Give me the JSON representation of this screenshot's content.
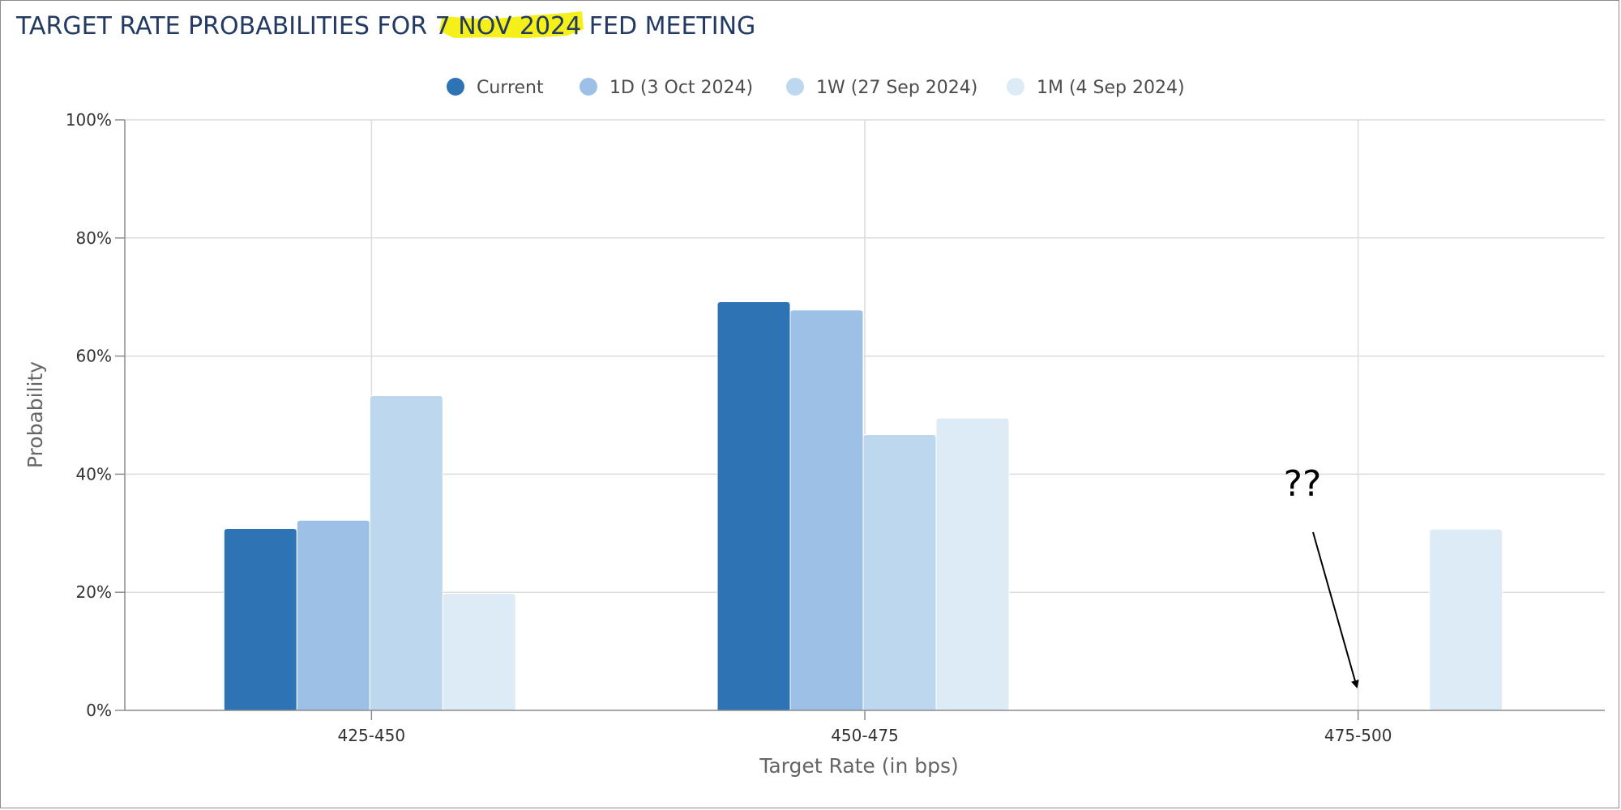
{
  "chart_data": {
    "type": "bar",
    "title_parts": [
      "TARGET RATE PROBABILITIES FOR ",
      "7 NOV 2024",
      " FED MEETING"
    ],
    "highlight_color": "#f5ef1a",
    "xlabel": "Target Rate (in bps)",
    "ylabel": "Probability",
    "ylim": [
      0,
      100
    ],
    "y_ticks": [
      "0%",
      "20%",
      "40%",
      "60%",
      "80%",
      "100%"
    ],
    "categories": [
      "425-450",
      "450-475",
      "475-500"
    ],
    "legend_position": "top-center",
    "grid": true,
    "series": [
      {
        "name": "Current",
        "color": "#2e74b5",
        "values": [
          30.8,
          69.2,
          0
        ]
      },
      {
        "name": "1D (3 Oct 2024)",
        "color": "#9dc1e6",
        "values": [
          32.2,
          67.8,
          0
        ]
      },
      {
        "name": "1W (27 Sep 2024)",
        "color": "#bdd7ee",
        "values": [
          53.3,
          46.7,
          0
        ]
      },
      {
        "name": "1M (4 Sep 2024)",
        "color": "#ddebf7",
        "values": [
          19.8,
          49.5,
          30.7
        ]
      }
    ],
    "annotation": {
      "text": "??",
      "target_category": "475-500"
    }
  }
}
